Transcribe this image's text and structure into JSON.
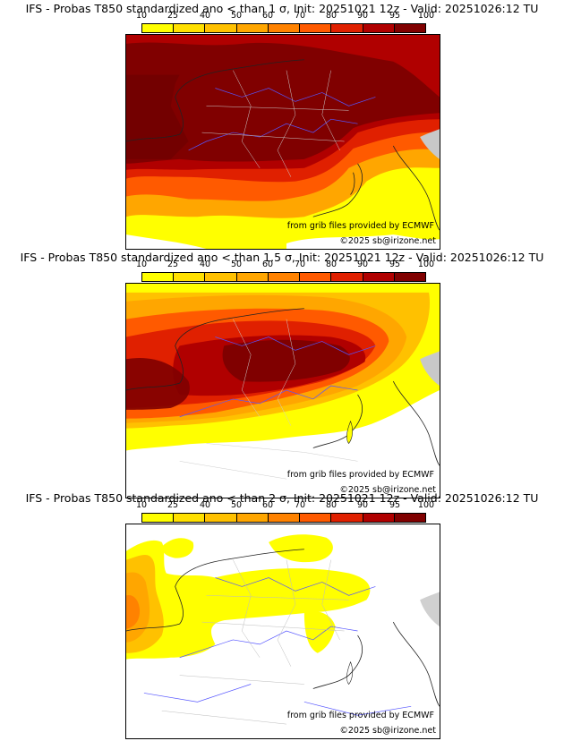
{
  "colorbar": {
    "ticks": [
      "10",
      "25",
      "40",
      "50",
      "60",
      "70",
      "80",
      "90",
      "95",
      "100"
    ],
    "colors": [
      "#ffff00",
      "#ffe000",
      "#ffc100",
      "#ffa600",
      "#ff8200",
      "#ff5a00",
      "#e02000",
      "#b00000",
      "#800000"
    ]
  },
  "panels": [
    {
      "title": "IFS - Probas T850  standardized ano < than 1 σ, Init: 20251021 12z - Valid: 20251026:12 TU",
      "source": "from grib files provided by ECMWF",
      "copyright": "©2025 sb@irizone.net"
    },
    {
      "title": "IFS - Probas T850  standardized ano < than 1.5 σ, Init: 20251021 12z - Valid: 20251026:12 TU",
      "source": "from grib files provided by ECMWF",
      "copyright": "©2025 sb@irizone.net"
    },
    {
      "title": "IFS - Probas T850  standardized ano < than 2 σ, Init: 20251021 12z - Valid: 20251026:12 TU",
      "source": "from grib files provided by ECMWF",
      "copyright": "©2025 sb@irizone.net"
    }
  ]
}
